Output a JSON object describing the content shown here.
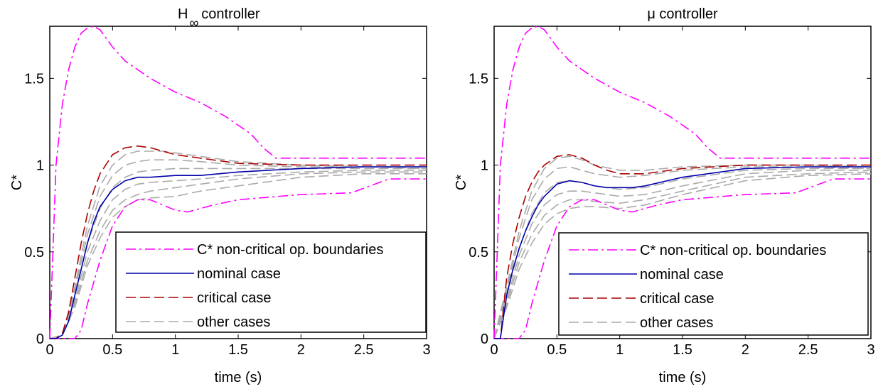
{
  "chart_data": [
    {
      "type": "line",
      "title": "H∞ controller",
      "title_main": "H",
      "title_sub": "∞",
      "title_rest": "controller",
      "xlabel": "time (s)",
      "ylabel": "C*",
      "xlim": [
        0,
        3
      ],
      "ylim": [
        0,
        1.8
      ],
      "xticks": [
        0,
        0.5,
        1,
        1.5,
        2,
        2.5,
        3
      ],
      "xtick_labels": [
        "0",
        "0.5",
        "1",
        "1.5",
        "2",
        "2.5",
        "3"
      ],
      "yticks": [
        0,
        0.5,
        1,
        1.5
      ],
      "ytick_labels": [
        "0",
        "0.5",
        "1",
        "1.5"
      ],
      "grid": false,
      "legend_position": "bottom-right",
      "legend": [
        {
          "label": "C* non-critical op. boundaries",
          "color": "#ff00ff",
          "style": "dashdot"
        },
        {
          "label": "nominal case",
          "color": "#0000aa",
          "style": "solid"
        },
        {
          "label": "critical case",
          "color": "#aa0000",
          "style": "dashed"
        },
        {
          "label": "other cases",
          "color": "#aaaaaa",
          "style": "dashed"
        }
      ],
      "series": [
        {
          "role": "boundary-upper",
          "color": "#ff00ff",
          "style": "dashdot",
          "x": [
            0,
            0.05,
            0.1,
            0.15,
            0.2,
            0.25,
            0.3,
            0.35,
            0.4,
            0.5,
            0.6,
            0.8,
            1.0,
            1.2,
            1.4,
            1.6,
            1.7,
            1.8,
            2.0,
            2.5,
            3.0
          ],
          "y": [
            0,
            1.0,
            1.35,
            1.55,
            1.68,
            1.76,
            1.79,
            1.8,
            1.78,
            1.68,
            1.6,
            1.5,
            1.42,
            1.36,
            1.28,
            1.18,
            1.1,
            1.04,
            1.04,
            1.04,
            1.04
          ]
        },
        {
          "role": "boundary-lower",
          "color": "#ff00ff",
          "style": "dashdot",
          "x": [
            0,
            0.1,
            0.2,
            0.25,
            0.3,
            0.4,
            0.5,
            0.6,
            0.7,
            0.8,
            0.9,
            1.0,
            1.1,
            1.3,
            1.5,
            2.0,
            2.4,
            2.7,
            3.0
          ],
          "y": [
            0,
            0,
            0,
            0.05,
            0.2,
            0.45,
            0.65,
            0.76,
            0.8,
            0.8,
            0.77,
            0.74,
            0.73,
            0.77,
            0.8,
            0.83,
            0.84,
            0.92,
            0.92
          ]
        },
        {
          "role": "nominal",
          "color": "#0000aa",
          "style": "solid",
          "x": [
            0,
            0.05,
            0.1,
            0.15,
            0.2,
            0.25,
            0.3,
            0.35,
            0.4,
            0.5,
            0.6,
            0.7,
            0.8,
            1.0,
            1.2,
            1.5,
            2.0,
            2.5,
            3.0
          ],
          "y": [
            0,
            0,
            0.02,
            0.1,
            0.25,
            0.4,
            0.55,
            0.67,
            0.76,
            0.86,
            0.91,
            0.93,
            0.93,
            0.94,
            0.94,
            0.96,
            0.98,
            0.99,
            0.99
          ]
        },
        {
          "role": "critical",
          "color": "#aa0000",
          "style": "dashed",
          "x": [
            0,
            0.05,
            0.1,
            0.15,
            0.2,
            0.25,
            0.3,
            0.35,
            0.4,
            0.5,
            0.6,
            0.7,
            0.8,
            0.9,
            1.0,
            1.2,
            1.5,
            2.0,
            2.5,
            3.0
          ],
          "y": [
            0,
            0,
            0.03,
            0.15,
            0.35,
            0.55,
            0.72,
            0.85,
            0.95,
            1.06,
            1.1,
            1.11,
            1.1,
            1.08,
            1.06,
            1.04,
            1.01,
            1.0,
            1.0,
            1.0
          ]
        },
        {
          "role": "other",
          "color": "#aaaaaa",
          "style": "dashed",
          "x": [
            0,
            0.1,
            0.2,
            0.3,
            0.4,
            0.5,
            0.6,
            0.7,
            0.8,
            0.9,
            1.0,
            1.2,
            1.5,
            2.0,
            2.5,
            3.0
          ],
          "y": [
            0,
            0.02,
            0.3,
            0.65,
            0.88,
            1.0,
            1.06,
            1.08,
            1.08,
            1.08,
            1.07,
            1.05,
            1.02,
            1.0,
            0.99,
            0.99
          ]
        },
        {
          "role": "other",
          "color": "#aaaaaa",
          "style": "dashed",
          "x": [
            0,
            0.1,
            0.2,
            0.3,
            0.4,
            0.5,
            0.6,
            0.7,
            0.8,
            1.0,
            1.2,
            1.5,
            2.0,
            2.5,
            3.0
          ],
          "y": [
            0,
            0.02,
            0.28,
            0.6,
            0.82,
            0.94,
            1.0,
            1.02,
            1.03,
            1.03,
            1.02,
            1.0,
            0.99,
            0.99,
            0.98
          ]
        },
        {
          "role": "other",
          "color": "#aaaaaa",
          "style": "dashed",
          "x": [
            0,
            0.1,
            0.2,
            0.3,
            0.4,
            0.5,
            0.6,
            0.7,
            0.8,
            1.0,
            1.2,
            1.5,
            2.0,
            2.5,
            3.0
          ],
          "y": [
            0,
            0.02,
            0.25,
            0.55,
            0.75,
            0.87,
            0.93,
            0.96,
            0.97,
            0.98,
            0.98,
            0.98,
            0.98,
            0.98,
            0.98
          ]
        },
        {
          "role": "other",
          "color": "#aaaaaa",
          "style": "dashed",
          "x": [
            0,
            0.1,
            0.2,
            0.3,
            0.4,
            0.5,
            0.6,
            0.7,
            0.8,
            1.0,
            1.2,
            1.5,
            2.0,
            2.5,
            3.0
          ],
          "y": [
            0,
            0.02,
            0.22,
            0.5,
            0.68,
            0.8,
            0.86,
            0.89,
            0.9,
            0.91,
            0.92,
            0.94,
            0.96,
            0.97,
            0.97
          ]
        },
        {
          "role": "other",
          "color": "#aaaaaa",
          "style": "dashed",
          "x": [
            0,
            0.1,
            0.2,
            0.3,
            0.4,
            0.5,
            0.6,
            0.7,
            0.8,
            1.0,
            1.2,
            1.5,
            2.0,
            2.5,
            3.0
          ],
          "y": [
            0,
            0.02,
            0.2,
            0.45,
            0.62,
            0.74,
            0.8,
            0.83,
            0.85,
            0.87,
            0.89,
            0.92,
            0.95,
            0.96,
            0.96
          ]
        },
        {
          "role": "other",
          "color": "#aaaaaa",
          "style": "dashed",
          "x": [
            0,
            0.1,
            0.2,
            0.3,
            0.4,
            0.5,
            0.6,
            0.7,
            0.8,
            1.0,
            1.2,
            1.5,
            2.0,
            2.5,
            3.0
          ],
          "y": [
            0,
            0.02,
            0.18,
            0.42,
            0.58,
            0.7,
            0.76,
            0.8,
            0.81,
            0.82,
            0.85,
            0.88,
            0.93,
            0.95,
            0.95
          ]
        }
      ]
    },
    {
      "type": "line",
      "title": "μ controller",
      "xlabel": "time (s)",
      "ylabel": "C*",
      "xlim": [
        0,
        3
      ],
      "ylim": [
        0,
        1.8
      ],
      "xticks": [
        0,
        0.5,
        1,
        1.5,
        2,
        2.5,
        3
      ],
      "xtick_labels": [
        "0",
        "0.5",
        "1",
        "1.5",
        "2",
        "2.5",
        "3"
      ],
      "yticks": [
        0,
        0.5,
        1,
        1.5
      ],
      "ytick_labels": [
        "0",
        "0.5",
        "1",
        "1.5"
      ],
      "grid": false,
      "legend_position": "bottom-right",
      "legend": [
        {
          "label": "C* non-critical op. boundaries",
          "color": "#ff00ff",
          "style": "dashdot"
        },
        {
          "label": "nominal case",
          "color": "#0000aa",
          "style": "solid"
        },
        {
          "label": "critical case",
          "color": "#aa0000",
          "style": "dashed"
        },
        {
          "label": "other cases",
          "color": "#aaaaaa",
          "style": "dashed"
        }
      ],
      "series": [
        {
          "role": "boundary-upper",
          "color": "#ff00ff",
          "style": "dashdot",
          "x": [
            0,
            0.05,
            0.1,
            0.15,
            0.2,
            0.25,
            0.3,
            0.35,
            0.4,
            0.5,
            0.6,
            0.8,
            1.0,
            1.2,
            1.4,
            1.6,
            1.7,
            1.8,
            2.0,
            2.5,
            3.0
          ],
          "y": [
            0,
            1.0,
            1.35,
            1.55,
            1.68,
            1.76,
            1.79,
            1.8,
            1.78,
            1.68,
            1.6,
            1.5,
            1.42,
            1.36,
            1.28,
            1.18,
            1.1,
            1.04,
            1.04,
            1.04,
            1.04
          ]
        },
        {
          "role": "boundary-lower",
          "color": "#ff00ff",
          "style": "dashdot",
          "x": [
            0,
            0.1,
            0.2,
            0.25,
            0.3,
            0.4,
            0.5,
            0.6,
            0.7,
            0.8,
            0.9,
            1.0,
            1.1,
            1.3,
            1.5,
            2.0,
            2.4,
            2.7,
            3.0
          ],
          "y": [
            0,
            0,
            0,
            0.05,
            0.2,
            0.45,
            0.65,
            0.76,
            0.8,
            0.8,
            0.77,
            0.74,
            0.73,
            0.77,
            0.8,
            0.83,
            0.84,
            0.92,
            0.92
          ]
        },
        {
          "role": "nominal",
          "color": "#0000aa",
          "style": "solid",
          "x": [
            0,
            0.05,
            0.1,
            0.15,
            0.2,
            0.25,
            0.3,
            0.35,
            0.4,
            0.5,
            0.6,
            0.7,
            0.8,
            0.9,
            1.0,
            1.1,
            1.2,
            1.5,
            2.0,
            2.5,
            3.0
          ],
          "y": [
            0,
            0,
            0.25,
            0.4,
            0.52,
            0.62,
            0.7,
            0.77,
            0.82,
            0.89,
            0.91,
            0.9,
            0.88,
            0.87,
            0.87,
            0.87,
            0.88,
            0.93,
            0.98,
            0.99,
            0.99
          ]
        },
        {
          "role": "critical",
          "color": "#aa0000",
          "style": "dashed",
          "x": [
            0,
            0.05,
            0.1,
            0.15,
            0.2,
            0.25,
            0.3,
            0.35,
            0.4,
            0.5,
            0.6,
            0.7,
            0.8,
            0.9,
            1.0,
            1.2,
            1.5,
            2.0,
            2.5,
            3.0
          ],
          "y": [
            0,
            0,
            0.35,
            0.55,
            0.7,
            0.82,
            0.9,
            0.96,
            1.0,
            1.05,
            1.06,
            1.04,
            1.0,
            0.97,
            0.95,
            0.95,
            0.98,
            1.0,
            1.0,
            1.0
          ]
        },
        {
          "role": "other",
          "color": "#aaaaaa",
          "style": "dashed",
          "x": [
            0,
            0.1,
            0.2,
            0.3,
            0.4,
            0.5,
            0.6,
            0.7,
            0.8,
            1.0,
            1.2,
            1.5,
            2.0,
            2.5,
            3.0
          ],
          "y": [
            0,
            0.3,
            0.62,
            0.85,
            0.98,
            1.04,
            1.05,
            1.03,
            1.0,
            0.97,
            0.97,
            0.99,
            1.0,
            1.0,
            0.99
          ]
        },
        {
          "role": "other",
          "color": "#aaaaaa",
          "style": "dashed",
          "x": [
            0,
            0.1,
            0.2,
            0.3,
            0.4,
            0.5,
            0.6,
            0.7,
            0.8,
            1.0,
            1.2,
            1.5,
            2.0,
            2.5,
            3.0
          ],
          "y": [
            0,
            0.28,
            0.58,
            0.8,
            0.92,
            0.98,
            0.99,
            0.97,
            0.95,
            0.93,
            0.94,
            0.97,
            0.99,
            0.99,
            0.98
          ]
        },
        {
          "role": "other",
          "color": "#aaaaaa",
          "style": "dashed",
          "x": [
            0,
            0.1,
            0.2,
            0.3,
            0.4,
            0.5,
            0.6,
            0.7,
            0.8,
            1.0,
            1.2,
            1.5,
            2.0,
            2.5,
            3.0
          ],
          "y": [
            0,
            0.25,
            0.52,
            0.72,
            0.84,
            0.9,
            0.91,
            0.9,
            0.88,
            0.86,
            0.87,
            0.92,
            0.97,
            0.98,
            0.98
          ]
        },
        {
          "role": "other",
          "color": "#aaaaaa",
          "style": "dashed",
          "x": [
            0,
            0.1,
            0.2,
            0.3,
            0.4,
            0.5,
            0.6,
            0.7,
            0.8,
            1.0,
            1.2,
            1.5,
            2.0,
            2.5,
            3.0
          ],
          "y": [
            0,
            0.22,
            0.48,
            0.66,
            0.77,
            0.83,
            0.85,
            0.85,
            0.84,
            0.82,
            0.83,
            0.88,
            0.95,
            0.97,
            0.97
          ]
        },
        {
          "role": "other",
          "color": "#aaaaaa",
          "style": "dashed",
          "x": [
            0,
            0.1,
            0.2,
            0.3,
            0.4,
            0.5,
            0.6,
            0.7,
            0.8,
            1.0,
            1.2,
            1.5,
            2.0,
            2.5,
            3.0
          ],
          "y": [
            0,
            0.2,
            0.44,
            0.6,
            0.71,
            0.77,
            0.8,
            0.8,
            0.79,
            0.78,
            0.8,
            0.85,
            0.93,
            0.95,
            0.96
          ]
        },
        {
          "role": "other",
          "color": "#aaaaaa",
          "style": "dashed",
          "x": [
            0,
            0.1,
            0.2,
            0.3,
            0.4,
            0.5,
            0.6,
            0.7,
            0.8,
            1.0,
            1.2,
            1.5,
            2.0,
            2.5,
            3.0
          ],
          "y": [
            0,
            0.18,
            0.4,
            0.55,
            0.66,
            0.72,
            0.75,
            0.76,
            0.76,
            0.75,
            0.77,
            0.83,
            0.91,
            0.94,
            0.95
          ]
        }
      ]
    }
  ]
}
